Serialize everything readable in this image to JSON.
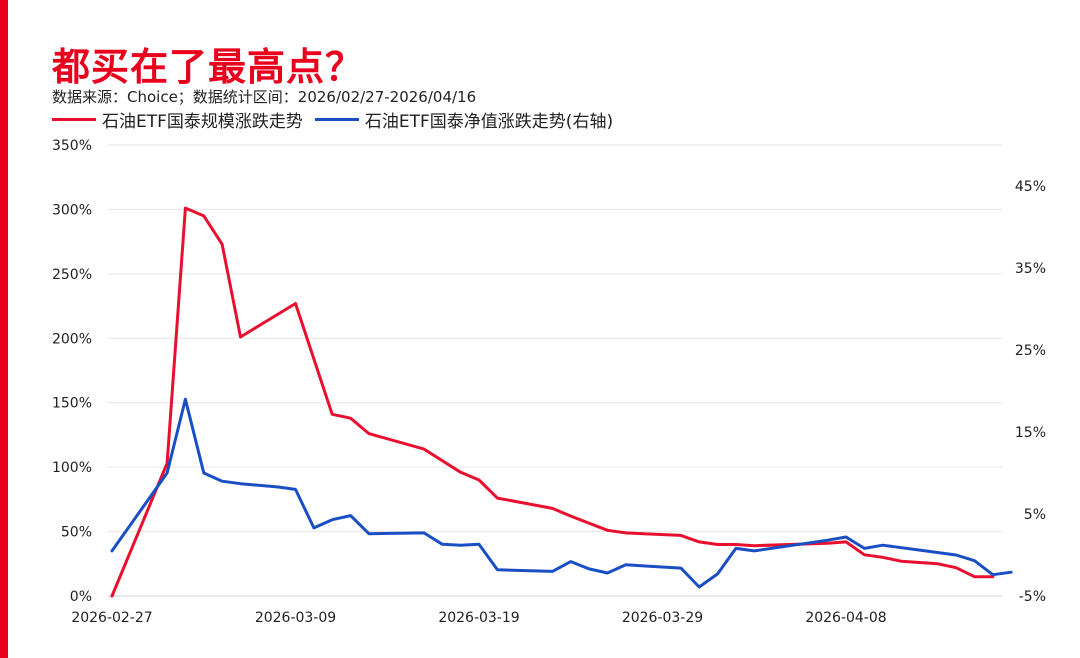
{
  "title": "都买在了最高点？",
  "source": "数据来源：Choice；数据统计区间：2026/02/27-2026/04/16",
  "colors": {
    "accent": "#e8001c",
    "series_scale": "#e8102e",
    "series_nav": "#1a4fc4",
    "grid": "#e6e6e6"
  },
  "chart_data": {
    "type": "line",
    "title": "都买在了最高点？",
    "x_tick_labels": [
      "2026-02-27",
      "2026-03-09",
      "2026-03-19",
      "2026-03-29",
      "2026-04-08"
    ],
    "y_left": {
      "range": [
        0,
        350
      ],
      "ticks": [
        0,
        50,
        100,
        150,
        200,
        250,
        300,
        350
      ],
      "tick_labels": [
        "0%",
        "50%",
        "100%",
        "150%",
        "200%",
        "250%",
        "300%",
        "350%"
      ]
    },
    "y_right": {
      "range": [
        -5,
        50
      ],
      "ticks": [
        -5,
        5,
        15,
        25,
        35,
        45
      ],
      "tick_labels": [
        "-5%",
        "5%",
        "15%",
        "25%",
        "35%",
        "45%"
      ]
    },
    "grid": "horizontal",
    "legend_position": "top-left",
    "series": [
      {
        "name": "石油ETF国泰规模涨跌走势",
        "axis": "left",
        "points": [
          [
            "2026-02-27",
            0
          ],
          [
            "2026-03-02",
            103
          ],
          [
            "2026-03-03",
            301
          ],
          [
            "2026-03-04",
            295
          ],
          [
            "2026-03-05",
            273
          ],
          [
            "2026-03-06",
            201
          ],
          [
            "2026-03-09",
            227
          ],
          [
            "2026-03-11",
            141
          ],
          [
            "2026-03-12",
            138
          ],
          [
            "2026-03-13",
            126
          ],
          [
            "2026-03-16",
            114
          ],
          [
            "2026-03-18",
            96
          ],
          [
            "2026-03-19",
            90
          ],
          [
            "2026-03-20",
            76
          ],
          [
            "2026-03-23",
            68
          ],
          [
            "2026-03-24",
            62
          ],
          [
            "2026-03-26",
            51
          ],
          [
            "2026-03-27",
            49
          ],
          [
            "2026-03-30",
            47
          ],
          [
            "2026-03-31",
            42
          ],
          [
            "2026-04-01",
            40
          ],
          [
            "2026-04-02",
            40
          ],
          [
            "2026-04-03",
            39
          ],
          [
            "2026-04-07",
            41
          ],
          [
            "2026-04-08",
            42
          ],
          [
            "2026-04-09",
            32
          ],
          [
            "2026-04-10",
            30
          ],
          [
            "2026-04-11",
            27
          ],
          [
            "2026-04-13",
            25
          ],
          [
            "2026-04-14",
            22
          ],
          [
            "2026-04-15",
            15
          ],
          [
            "2026-04-16",
            15
          ]
        ]
      },
      {
        "name": "石油ETF国泰净值涨跌走势(右轴)",
        "axis": "right",
        "points": [
          [
            "2026-02-27",
            0.5
          ],
          [
            "2026-03-02",
            10.0
          ],
          [
            "2026-03-03",
            19.0
          ],
          [
            "2026-03-04",
            10.0
          ],
          [
            "2026-03-05",
            9.0
          ],
          [
            "2026-03-06",
            8.7
          ],
          [
            "2026-03-08",
            8.3
          ],
          [
            "2026-03-09",
            8.0
          ],
          [
            "2026-03-10",
            3.3
          ],
          [
            "2026-03-11",
            4.3
          ],
          [
            "2026-03-12",
            4.8
          ],
          [
            "2026-03-13",
            2.6
          ],
          [
            "2026-03-16",
            2.7
          ],
          [
            "2026-03-17",
            1.3
          ],
          [
            "2026-03-18",
            1.2
          ],
          [
            "2026-03-19",
            1.3
          ],
          [
            "2026-03-20",
            -1.8
          ],
          [
            "2026-03-23",
            -2.0
          ],
          [
            "2026-03-24",
            -0.8
          ],
          [
            "2026-03-25",
            -1.7
          ],
          [
            "2026-03-26",
            -2.2
          ],
          [
            "2026-03-27",
            -1.2
          ],
          [
            "2026-03-30",
            -1.6
          ],
          [
            "2026-03-31",
            -3.9
          ],
          [
            "2026-04-01",
            -2.3
          ],
          [
            "2026-04-02",
            0.8
          ],
          [
            "2026-04-03",
            0.5
          ],
          [
            "2026-04-07",
            1.8
          ],
          [
            "2026-04-08",
            2.2
          ],
          [
            "2026-04-09",
            0.8
          ],
          [
            "2026-04-10",
            1.2
          ],
          [
            "2026-04-14",
            0.0
          ],
          [
            "2026-04-15",
            -0.7
          ],
          [
            "2026-04-16",
            -2.4
          ],
          [
            "2026-04-17",
            -2.1
          ]
        ]
      }
    ]
  }
}
